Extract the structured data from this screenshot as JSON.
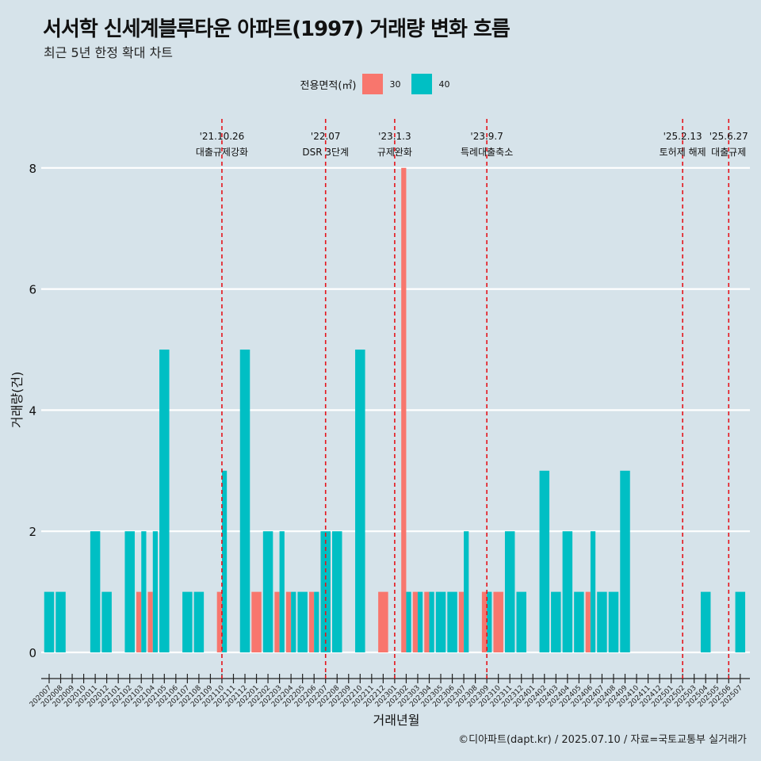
{
  "title": "서서학 신세계블루타운 아파트(1997) 거래량 변화 흐름",
  "subtitle": "최근 5년 한정 확대 차트",
  "caption": "©디아파트(dapt.kr) / 2025.07.10 / 자료=국토교통부 실거래가",
  "legend": {
    "title": "전용면적(㎡)",
    "items": [
      {
        "label": "30",
        "color": "#f8766d"
      },
      {
        "label": "40",
        "color": "#00bfc4"
      }
    ]
  },
  "chart_data": {
    "type": "bar",
    "xlabel": "거래년월",
    "ylabel": "거래량(건)",
    "ylim": [
      0,
      8
    ],
    "yticks": [
      0,
      2,
      4,
      6,
      8
    ],
    "grid": true,
    "legend_position": "top",
    "categories": [
      "202007",
      "202008",
      "202009",
      "202010",
      "202011",
      "202012",
      "202101",
      "202102",
      "202103",
      "202104",
      "202105",
      "202106",
      "202107",
      "202108",
      "202109",
      "202110",
      "202111",
      "202112",
      "202201",
      "202202",
      "202203",
      "202204",
      "202205",
      "202206",
      "202207",
      "202208",
      "202209",
      "202210",
      "202211",
      "202212",
      "202301",
      "202302",
      "202303",
      "202304",
      "202305",
      "202306",
      "202307",
      "202308",
      "202309",
      "202310",
      "202311",
      "202312",
      "202401",
      "202402",
      "202403",
      "202404",
      "202405",
      "202406",
      "202407",
      "202408",
      "202409",
      "202410",
      "202411",
      "202412",
      "202501",
      "202502",
      "202503",
      "202504",
      "202505",
      "202506",
      "202507"
    ],
    "bars": [
      {
        "month": "202007",
        "size": "40",
        "value": 1
      },
      {
        "month": "202008",
        "size": "40",
        "value": 1
      },
      {
        "month": "202011",
        "size": "40",
        "value": 2
      },
      {
        "month": "202012",
        "size": "40",
        "value": 1
      },
      {
        "month": "202102",
        "size": "40",
        "value": 2
      },
      {
        "month": "202103",
        "size": "30",
        "value": 1
      },
      {
        "month": "202103",
        "size": "40",
        "value": 2
      },
      {
        "month": "202104",
        "size": "30",
        "value": 1
      },
      {
        "month": "202104",
        "size": "40",
        "value": 2
      },
      {
        "month": "202105",
        "size": "40",
        "value": 5
      },
      {
        "month": "202107",
        "size": "40",
        "value": 1
      },
      {
        "month": "202108",
        "size": "40",
        "value": 1
      },
      {
        "month": "202110",
        "size": "30",
        "value": 1
      },
      {
        "month": "202110",
        "size": "40",
        "value": 3
      },
      {
        "month": "202112",
        "size": "40",
        "value": 5
      },
      {
        "month": "202201",
        "size": "30",
        "value": 1
      },
      {
        "month": "202202",
        "size": "40",
        "value": 2
      },
      {
        "month": "202203",
        "size": "30",
        "value": 1
      },
      {
        "month": "202203",
        "size": "40",
        "value": 2
      },
      {
        "month": "202204",
        "size": "30",
        "value": 1
      },
      {
        "month": "202204",
        "size": "40",
        "value": 1
      },
      {
        "month": "202205",
        "size": "40",
        "value": 1
      },
      {
        "month": "202206",
        "size": "30",
        "value": 1
      },
      {
        "month": "202206",
        "size": "40",
        "value": 1
      },
      {
        "month": "202207",
        "size": "40",
        "value": 2
      },
      {
        "month": "202208",
        "size": "40",
        "value": 2
      },
      {
        "month": "202210",
        "size": "40",
        "value": 5
      },
      {
        "month": "202212",
        "size": "30",
        "value": 1
      },
      {
        "month": "202302",
        "size": "30",
        "value": 8
      },
      {
        "month": "202302",
        "size": "40",
        "value": 1
      },
      {
        "month": "202303",
        "size": "30",
        "value": 1
      },
      {
        "month": "202303",
        "size": "40",
        "value": 1
      },
      {
        "month": "202304",
        "size": "30",
        "value": 1
      },
      {
        "month": "202304",
        "size": "40",
        "value": 1
      },
      {
        "month": "202305",
        "size": "40",
        "value": 1
      },
      {
        "month": "202306",
        "size": "40",
        "value": 1
      },
      {
        "month": "202307",
        "size": "30",
        "value": 1
      },
      {
        "month": "202307",
        "size": "40",
        "value": 2
      },
      {
        "month": "202309",
        "size": "30",
        "value": 1
      },
      {
        "month": "202309",
        "size": "40",
        "value": 1
      },
      {
        "month": "202310",
        "size": "30",
        "value": 1
      },
      {
        "month": "202311",
        "size": "40",
        "value": 2
      },
      {
        "month": "202312",
        "size": "40",
        "value": 1
      },
      {
        "month": "202402",
        "size": "40",
        "value": 3
      },
      {
        "month": "202403",
        "size": "40",
        "value": 1
      },
      {
        "month": "202404",
        "size": "40",
        "value": 2
      },
      {
        "month": "202405",
        "size": "40",
        "value": 1
      },
      {
        "month": "202406",
        "size": "30",
        "value": 1
      },
      {
        "month": "202406",
        "size": "40",
        "value": 2
      },
      {
        "month": "202407",
        "size": "40",
        "value": 1
      },
      {
        "month": "202408",
        "size": "40",
        "value": 1
      },
      {
        "month": "202409",
        "size": "40",
        "value": 3
      },
      {
        "month": "202504",
        "size": "40",
        "value": 1
      },
      {
        "month": "202507",
        "size": "40",
        "value": 1
      }
    ],
    "annotations": [
      {
        "month": "202110",
        "date": "'21.10.26",
        "label": "대출규제강화"
      },
      {
        "month": "202207",
        "date": "'22.07",
        "label": "DSR 3단계"
      },
      {
        "month": "202301",
        "date": "'23.1.3",
        "label": "규제완화"
      },
      {
        "month": "202309",
        "date": "'23.9.7",
        "label": "특례대출축소"
      },
      {
        "month": "202502",
        "date": "'25.2.13",
        "label": "토허제 해제"
      },
      {
        "month": "202506",
        "date": "'25.6.27",
        "label": "대출규제"
      }
    ]
  }
}
